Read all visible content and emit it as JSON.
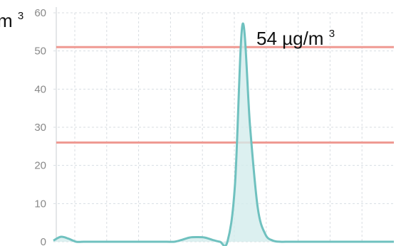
{
  "chart_data": {
    "type": "area",
    "xlabel": "",
    "ylabel": "",
    "ylim": [
      0,
      60
    ],
    "yticks": [
      "0",
      "10",
      "20",
      "30",
      "40",
      "50",
      "60"
    ],
    "grid": true,
    "x": [
      0,
      1,
      2,
      3,
      4,
      5,
      6,
      7,
      8,
      9,
      10,
      11,
      12,
      13,
      14,
      15,
      16,
      17,
      18,
      19,
      20,
      21,
      22,
      23,
      24,
      25,
      26,
      27,
      28,
      29,
      30,
      31,
      32,
      33,
      34,
      35,
      36,
      37,
      38,
      39,
      40,
      41,
      42,
      43,
      44,
      45
    ],
    "series": [
      {
        "values": [
          0.3,
          1.3,
          0.8,
          0,
          0,
          0,
          0,
          0,
          0,
          0,
          0,
          0,
          0,
          0,
          0,
          0,
          0,
          0.5,
          1.1,
          1.2,
          1.1,
          0.5,
          0,
          0,
          15,
          57,
          30,
          9,
          2,
          0.3,
          0,
          0,
          0,
          0,
          0,
          0,
          0,
          0,
          0,
          0,
          0,
          0,
          0,
          0,
          0,
          0
        ]
      }
    ],
    "reference_lines": [
      51,
      26
    ],
    "annotation_value": "54 µg/m",
    "annotation_sup": "3",
    "clipped_unit_text": "m",
    "clipped_unit_sup": "3",
    "colors": {
      "line": "#6fc1bf",
      "fill": "#d3ecec",
      "reference": "#ef9a93",
      "grid": "#d8dde2"
    }
  }
}
